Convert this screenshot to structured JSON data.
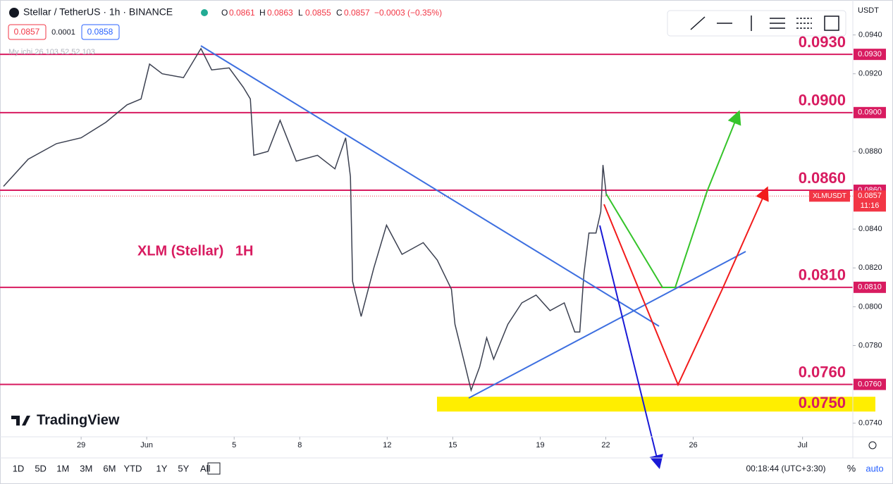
{
  "header": {
    "symbol": "Stellar / TetherUS · 1h · BINANCE",
    "o_label": "O",
    "open": "0.0861",
    "h_label": "H",
    "high": "0.0863",
    "l_label": "L",
    "low": "0.0855",
    "c_label": "C",
    "close": "0.0857",
    "change": "−0.0003 (−0.35%)",
    "sell": "0.0857",
    "spread": "0.0001",
    "buy": "0.0858",
    "indicator": "My ichi 26 103 52 52 103",
    "currency": "USDT"
  },
  "chart_data": {
    "type": "line",
    "annotation": "XLM (Stellar)   1H",
    "watermark": "TradingView",
    "color": "#3b4050",
    "grid": false,
    "x": [
      -3.55,
      -2.42,
      -1.13,
      0,
      1.13,
      2.1,
      2.74,
      3.13,
      3.71,
      4.68,
      5.48,
      5.97,
      6.77,
      7.42,
      7.74,
      7.9,
      8.55,
      9.1,
      9.84,
      10.81,
      11.61,
      12.1,
      12.32,
      12.42,
      12.81,
      13.39,
      13.97,
      14.68,
      15.65,
      16.29,
      16.94,
      17.1,
      17.58,
      17.84,
      18.23,
      18.55,
      18.87,
      19.52,
      20.16,
      20.81,
      21.45,
      22.1,
      22.58,
      22.81,
      23.0,
      23.23,
      23.55,
      23.77,
      23.87,
      24.03
    ],
    "values": [
      0.0862,
      0.0876,
      0.0884,
      0.0887,
      0.0895,
      0.0904,
      0.0907,
      0.0925,
      0.092,
      0.0918,
      0.0933,
      0.0922,
      0.0923,
      0.0913,
      0.0907,
      0.0878,
      0.088,
      0.0896,
      0.0875,
      0.0878,
      0.0871,
      0.0887,
      0.0867,
      0.0813,
      0.0795,
      0.082,
      0.0842,
      0.0827,
      0.0833,
      0.0824,
      0.0809,
      0.0791,
      0.0769,
      0.0757,
      0.0769,
      0.0784,
      0.0773,
      0.0791,
      0.0802,
      0.0806,
      0.0798,
      0.0802,
      0.0787,
      0.0787,
      0.0817,
      0.0838,
      0.0838,
      0.0849,
      0.0873,
      0.0857
    ],
    "xlim": [
      -3.55,
      35.3
    ],
    "ylim": [
      0.0733,
      0.0958
    ],
    "xticks": [
      {
        "value": 0,
        "label": "29"
      },
      {
        "value": 3,
        "label": "Jun"
      },
      {
        "value": 7,
        "label": "5"
      },
      {
        "value": 10,
        "label": "8"
      },
      {
        "value": 14,
        "label": "12"
      },
      {
        "value": 17,
        "label": "15"
      },
      {
        "value": 21,
        "label": "19"
      },
      {
        "value": 24,
        "label": "22"
      },
      {
        "value": 28,
        "label": "26"
      },
      {
        "value": 33,
        "label": "Jul"
      }
    ],
    "yticks": [
      {
        "value": 0.074,
        "label": "0.0740"
      },
      {
        "value": 0.076,
        "label": "0.0760"
      },
      {
        "value": 0.078,
        "label": "0.0780"
      },
      {
        "value": 0.08,
        "label": "0.0800"
      },
      {
        "value": 0.082,
        "label": "0.0820"
      },
      {
        "value": 0.084,
        "label": "0.0840"
      },
      {
        "value": 0.086,
        "label": "0.0860"
      },
      {
        "value": 0.088,
        "label": "0.0880"
      },
      {
        "value": 0.09,
        "label": "0.0900"
      },
      {
        "value": 0.092,
        "label": "0.0920"
      },
      {
        "value": 0.094,
        "label": "0.0940"
      }
    ],
    "levels": [
      {
        "value": 0.093,
        "label": "0.0930"
      },
      {
        "value": 0.09,
        "label": "0.0900"
      },
      {
        "value": 0.086,
        "label": "0.0860"
      },
      {
        "value": 0.081,
        "label": "0.0810"
      },
      {
        "value": 0.076,
        "label": "0.0760"
      }
    ],
    "level_color": "#d81b60",
    "zone": {
      "value": 0.075,
      "label": "0.0750",
      "color": "#ffee00"
    },
    "last_price": {
      "value": 0.0857,
      "label": "0.0857",
      "symbol": "XLMUSDT",
      "countdown": "11:16"
    }
  },
  "footer": {
    "ranges": [
      "1D",
      "5D",
      "1M",
      "3M",
      "6M",
      "YTD",
      "1Y",
      "5Y",
      "All"
    ],
    "clock": "00:18:44 (UTC+3:30)",
    "percent": "%",
    "auto": "auto"
  }
}
